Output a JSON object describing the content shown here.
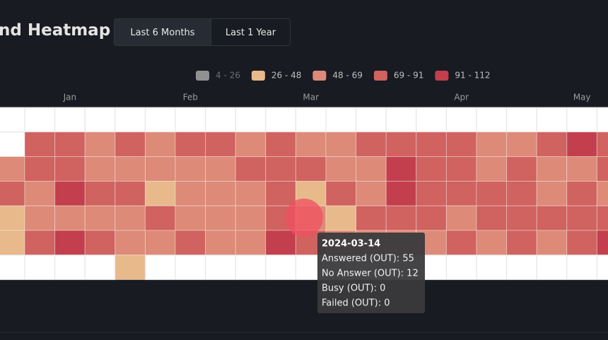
{
  "header": {
    "title": "nd Heatmap",
    "buttons": [
      "Last 6 Months",
      "Last 1 Year"
    ]
  },
  "chart_data": {
    "type": "heatmap",
    "legend": [
      {
        "label": "4 - 26",
        "color": "#a6a6a6",
        "range": [
          4,
          26
        ],
        "enabled": false
      },
      {
        "label": "26 - 48",
        "color": "#e8b98b",
        "range": [
          26,
          48
        ],
        "enabled": true
      },
      {
        "label": "48 - 69",
        "color": "#dd8a78",
        "range": [
          48,
          69
        ],
        "enabled": true
      },
      {
        "label": "69 - 91",
        "color": "#d0625f",
        "range": [
          69,
          91
        ],
        "enabled": true
      },
      {
        "label": "91 - 112",
        "color": "#c33f4d",
        "range": [
          91,
          112
        ],
        "enabled": true
      }
    ],
    "categories": [
      null,
      null,
      "Jan",
      null,
      null,
      null,
      "Feb",
      null,
      null,
      null,
      "Mar",
      null,
      null,
      null,
      null,
      "Apr",
      null,
      null,
      null,
      "May",
      null
    ],
    "z": [
      [
        null,
        null,
        null,
        null,
        null,
        null,
        null,
        null,
        null,
        null,
        null,
        null,
        null,
        null,
        null,
        null,
        null,
        null,
        null,
        null,
        null
      ],
      [
        null,
        80,
        80,
        58,
        80,
        58,
        80,
        80,
        60,
        78,
        62,
        60,
        80,
        78,
        80,
        80,
        60,
        62,
        80,
        100,
        80
      ],
      [
        60,
        80,
        80,
        62,
        62,
        60,
        62,
        60,
        78,
        76,
        78,
        62,
        60,
        98,
        80,
        78,
        62,
        80,
        62,
        62,
        80
      ],
      [
        78,
        60,
        100,
        80,
        80,
        40,
        62,
        62,
        60,
        80,
        42,
        80,
        62,
        98,
        80,
        80,
        78,
        80,
        62,
        80,
        62
      ],
      [
        40,
        62,
        60,
        62,
        62,
        80,
        60,
        62,
        60,
        78,
        67,
        44,
        78,
        80,
        78,
        62,
        80,
        80,
        78,
        80,
        80
      ],
      [
        40,
        80,
        98,
        78,
        62,
        62,
        78,
        62,
        60,
        98,
        80,
        62,
        60,
        62,
        62,
        80,
        62,
        80,
        62,
        80,
        98
      ],
      [
        null,
        null,
        null,
        null,
        40,
        null,
        null,
        null,
        null,
        null,
        null,
        null,
        null,
        null,
        null,
        null,
        null,
        null,
        null,
        null,
        null
      ]
    ],
    "tooltip": {
      "title": "2024-03-14",
      "lines": [
        "Answered (OUT): 55",
        "No Answer (OUT): 12",
        "Busy (OUT): 0",
        "Failed (OUT): 0"
      ]
    }
  }
}
